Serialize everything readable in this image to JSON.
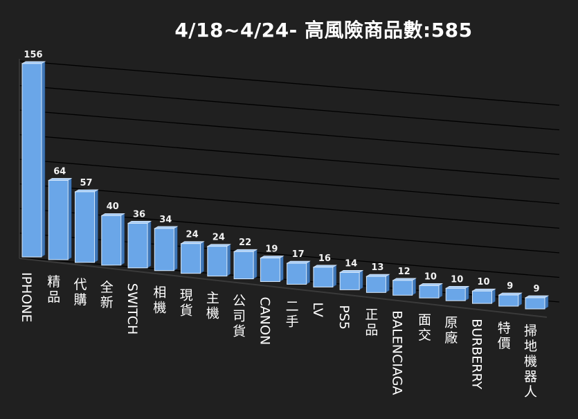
{
  "title": "4/18~4/24- 高風險商品數:585",
  "colors": {
    "background": "#202020",
    "bar_front": "#6aa6e8",
    "bar_side": "#3f77b8",
    "bar_top": "#a9cdf5",
    "grid": "#000000",
    "text": "#ffffff"
  },
  "chart_data": {
    "type": "bar",
    "title": "4/18~4/24- 高風險商品數:585",
    "xlabel": "",
    "ylabel": "",
    "grid": true,
    "legend": "none",
    "categories": [
      "IPHONE",
      "精品",
      "代購",
      "全新",
      "SWITCH",
      "相機",
      "現貨",
      "主機",
      "公司貨",
      "CANON",
      "二手",
      "LV",
      "PS5",
      "正品",
      "BALENCIAGA",
      "面交",
      "原廠",
      "BURBERRY",
      "特價",
      "掃地機器人"
    ],
    "values": [
      156,
      64,
      57,
      40,
      36,
      34,
      24,
      24,
      22,
      19,
      17,
      16,
      14,
      13,
      12,
      10,
      10,
      10,
      9,
      9
    ]
  }
}
